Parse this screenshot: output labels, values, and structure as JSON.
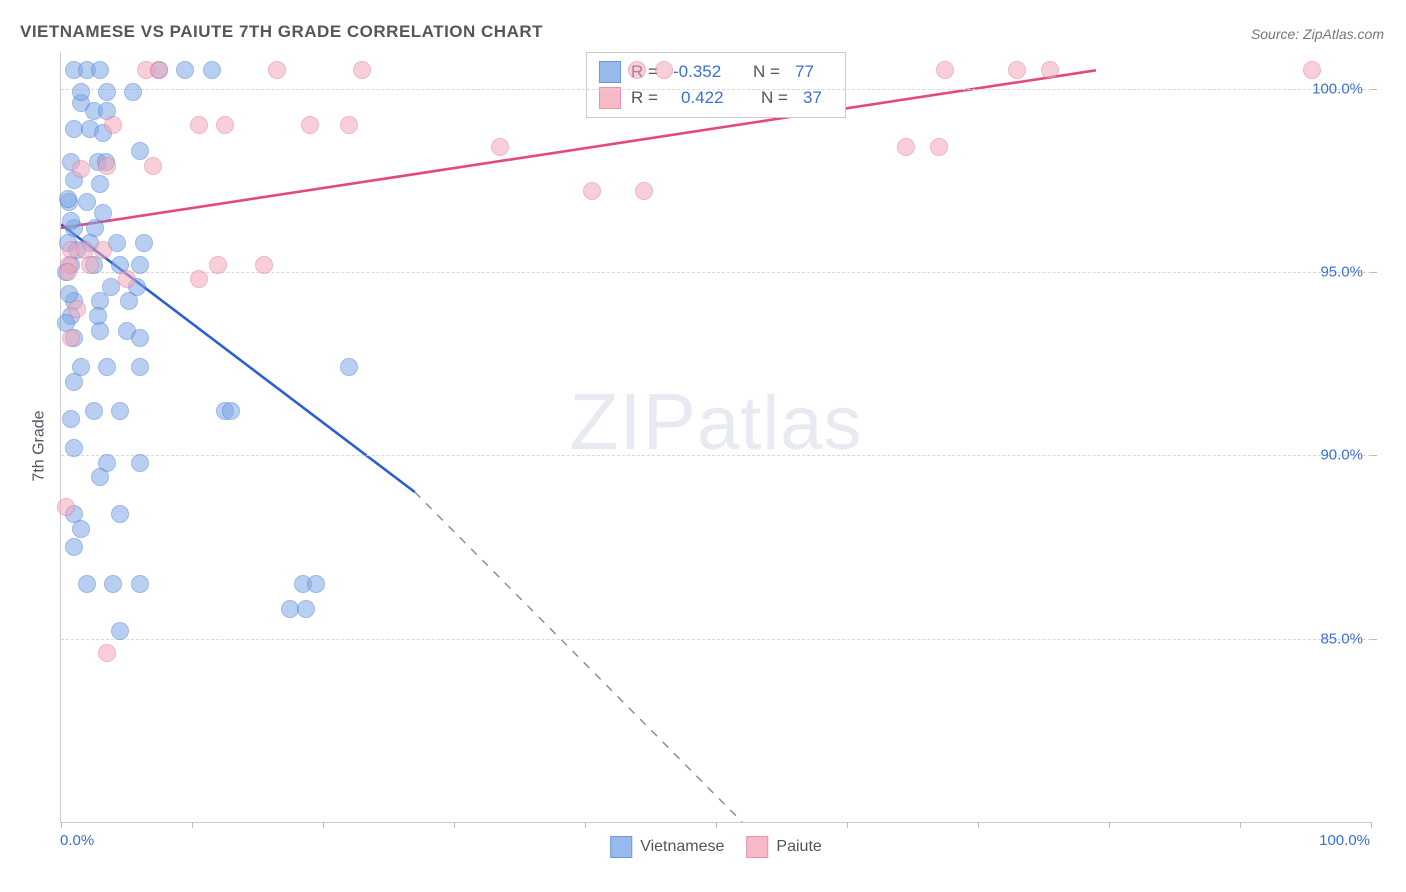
{
  "title": "VIETNAMESE VS PAIUTE 7TH GRADE CORRELATION CHART",
  "source": "Source: ZipAtlas.com",
  "ylabel": "7th Grade",
  "watermark_big": "ZIP",
  "watermark_small": "atlas",
  "chart": {
    "type": "scatter",
    "xlim": [
      0,
      100
    ],
    "ylim": [
      80,
      101
    ],
    "background_color": "#ffffff",
    "grid_color": "#d8d8d8",
    "axis_label_color": "#3b6fd6",
    "text_color": "#555560",
    "marker_radius": 8,
    "marker_opacity": 0.55,
    "marker_border_width": 1.2,
    "x_axis_labels": {
      "min": "0.0%",
      "max": "100.0%"
    },
    "y_ticks": [
      {
        "value": 85,
        "label": "85.0%"
      },
      {
        "value": 90,
        "label": "90.0%"
      },
      {
        "value": 95,
        "label": "95.0%"
      },
      {
        "value": 100,
        "label": "100.0%"
      }
    ],
    "x_tick_positions": [
      0,
      10,
      20,
      30,
      40,
      50,
      60,
      70,
      80,
      90,
      100
    ],
    "series": [
      {
        "name": "Vietnamese",
        "fill_color": "#7fa9e6",
        "stroke_color": "#4a7fd0",
        "line_color": "#2a5fd0",
        "r_value": "-0.352",
        "n_value": "77",
        "trend": {
          "x1": 0,
          "y1": 96.3,
          "x2": 27,
          "y2": 89.0,
          "extend_x2": 52,
          "extend_y2": 80.0
        },
        "points": [
          [
            1.0,
            100.5
          ],
          [
            2.0,
            100.5
          ],
          [
            3.0,
            100.5
          ],
          [
            7.5,
            100.5
          ],
          [
            9.5,
            100.5
          ],
          [
            11.5,
            100.5
          ],
          [
            1.5,
            99.6
          ],
          [
            2.5,
            99.4
          ],
          [
            3.5,
            99.4
          ],
          [
            1.0,
            98.9
          ],
          [
            2.2,
            98.9
          ],
          [
            3.2,
            98.8
          ],
          [
            0.8,
            98.0
          ],
          [
            2.8,
            98.0
          ],
          [
            3.4,
            98.0
          ],
          [
            6.0,
            98.3
          ],
          [
            1.0,
            97.5
          ],
          [
            3.0,
            97.4
          ],
          [
            0.6,
            96.9
          ],
          [
            2.0,
            96.9
          ],
          [
            3.2,
            96.6
          ],
          [
            1.0,
            96.2
          ],
          [
            2.6,
            96.2
          ],
          [
            0.5,
            95.8
          ],
          [
            2.2,
            95.8
          ],
          [
            4.3,
            95.8
          ],
          [
            6.3,
            95.8
          ],
          [
            0.8,
            95.2
          ],
          [
            2.5,
            95.2
          ],
          [
            4.5,
            95.2
          ],
          [
            6.0,
            95.2
          ],
          [
            3.8,
            94.6
          ],
          [
            5.8,
            94.6
          ],
          [
            1.0,
            94.2
          ],
          [
            3.0,
            94.2
          ],
          [
            5.2,
            94.2
          ],
          [
            0.8,
            93.8
          ],
          [
            2.8,
            93.8
          ],
          [
            1.0,
            93.2
          ],
          [
            3.0,
            93.4
          ],
          [
            5.0,
            93.4
          ],
          [
            6.0,
            93.2
          ],
          [
            1.5,
            92.4
          ],
          [
            3.5,
            92.4
          ],
          [
            6.0,
            92.4
          ],
          [
            22.0,
            92.4
          ],
          [
            2.5,
            91.2
          ],
          [
            4.5,
            91.2
          ],
          [
            12.5,
            91.2
          ],
          [
            13.0,
            91.2
          ],
          [
            1.0,
            90.2
          ],
          [
            3.5,
            89.8
          ],
          [
            6.0,
            89.8
          ],
          [
            1.0,
            88.4
          ],
          [
            4.5,
            88.4
          ],
          [
            2.0,
            86.5
          ],
          [
            4.0,
            86.5
          ],
          [
            6.0,
            86.5
          ],
          [
            18.5,
            86.5
          ],
          [
            19.5,
            86.5
          ],
          [
            17.5,
            85.8
          ],
          [
            18.7,
            85.8
          ],
          [
            4.5,
            85.2
          ],
          [
            1.5,
            99.9
          ],
          [
            3.5,
            99.9
          ],
          [
            5.5,
            99.9
          ],
          [
            0.5,
            97.0
          ],
          [
            0.8,
            96.4
          ],
          [
            1.2,
            95.6
          ],
          [
            0.4,
            95.0
          ],
          [
            0.6,
            94.4
          ],
          [
            0.4,
            93.6
          ],
          [
            1.0,
            92.0
          ],
          [
            0.8,
            91.0
          ],
          [
            3.0,
            89.4
          ],
          [
            1.5,
            88.0
          ],
          [
            1.0,
            87.5
          ]
        ]
      },
      {
        "name": "Paiute",
        "fill_color": "#f4a8bb",
        "stroke_color": "#e37a9a",
        "line_color": "#e34a7a",
        "r_value": "0.422",
        "n_value": "37",
        "trend": {
          "x1": 0,
          "y1": 96.2,
          "x2": 79,
          "y2": 100.5
        },
        "points": [
          [
            6.5,
            100.5
          ],
          [
            7.5,
            100.5
          ],
          [
            16.5,
            100.5
          ],
          [
            23.0,
            100.5
          ],
          [
            44.0,
            100.5
          ],
          [
            46.0,
            100.5
          ],
          [
            67.5,
            100.5
          ],
          [
            73.0,
            100.5
          ],
          [
            75.5,
            100.5
          ],
          [
            95.5,
            100.5
          ],
          [
            4.0,
            99.0
          ],
          [
            10.5,
            99.0
          ],
          [
            12.5,
            99.0
          ],
          [
            19.0,
            99.0
          ],
          [
            22.0,
            99.0
          ],
          [
            64.5,
            98.4
          ],
          [
            67.0,
            98.4
          ],
          [
            33.5,
            98.4
          ],
          [
            1.5,
            97.8
          ],
          [
            3.5,
            97.9
          ],
          [
            7.0,
            97.9
          ],
          [
            40.5,
            97.2
          ],
          [
            44.5,
            97.2
          ],
          [
            0.8,
            95.6
          ],
          [
            1.8,
            95.6
          ],
          [
            3.2,
            95.6
          ],
          [
            0.6,
            95.2
          ],
          [
            2.2,
            95.2
          ],
          [
            12.0,
            95.2
          ],
          [
            15.5,
            95.2
          ],
          [
            5.0,
            94.8
          ],
          [
            10.5,
            94.8
          ],
          [
            1.2,
            94.0
          ],
          [
            0.8,
            93.2
          ],
          [
            0.4,
            88.6
          ],
          [
            3.5,
            84.6
          ],
          [
            0.5,
            95.0
          ]
        ]
      }
    ]
  },
  "legend_top_labels": {
    "r": "R =",
    "n": "N ="
  },
  "legend_bottom_labels": [
    "Vietnamese",
    "Paiute"
  ]
}
